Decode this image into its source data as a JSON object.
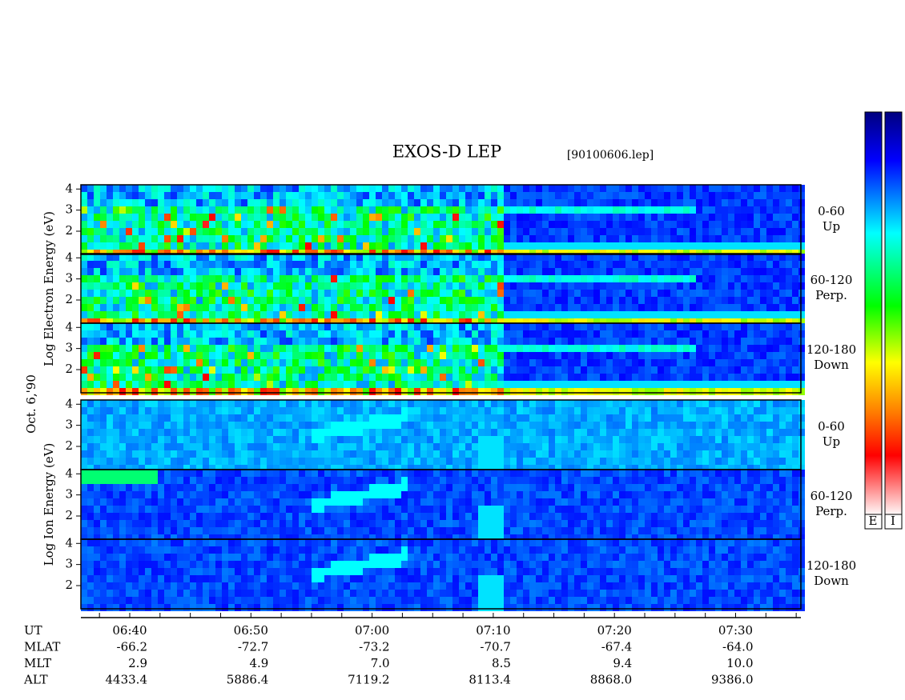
{
  "title": "EXOS-D LEP",
  "file_label": "[90100606.lep]",
  "date_label": "Oct. 6,'90",
  "yticks": [
    2,
    3,
    4
  ],
  "groups": [
    {
      "axis_label": "Log Electron Energy (eV)",
      "panels": [
        {
          "pitch": "0-60",
          "direction": "Up"
        },
        {
          "pitch": "60-120",
          "direction": "Perp."
        },
        {
          "pitch": "120-180",
          "direction": "Down"
        }
      ]
    },
    {
      "axis_label": "Log Ion Energy (eV)",
      "panels": [
        {
          "pitch": "0-60",
          "direction": "Up"
        },
        {
          "pitch": "60-120",
          "direction": "Perp."
        },
        {
          "pitch": "120-180",
          "direction": "Down"
        }
      ]
    }
  ],
  "colorbar_labels": [
    "E",
    "I"
  ],
  "time_table": {
    "rows": [
      {
        "label": "UT",
        "values": [
          "06:40",
          "06:50",
          "07:00",
          "07:10",
          "07:20",
          "07:30"
        ]
      },
      {
        "label": "MLAT",
        "values": [
          "-66.2",
          "-72.7",
          "-73.2",
          "-70.7",
          "-67.4",
          "-64.0"
        ]
      },
      {
        "label": "MLT",
        "values": [
          "2.9",
          "4.9",
          "7.0",
          "8.5",
          "9.4",
          "10.0"
        ]
      },
      {
        "label": "ALT",
        "values": [
          "4433.4",
          "5886.4",
          "7119.2",
          "8113.4",
          "8868.0",
          "9386.0"
        ]
      }
    ]
  }
}
